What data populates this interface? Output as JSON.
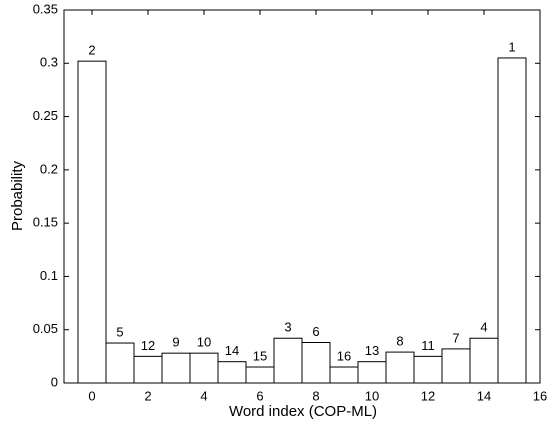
{
  "chart_data": {
    "type": "bar",
    "x_label": "Word index (COP-ML)",
    "y_label": "Probability",
    "x": [
      0,
      1,
      2,
      3,
      4,
      5,
      6,
      7,
      8,
      9,
      10,
      11,
      12,
      13,
      14,
      15
    ],
    "values": [
      0.302,
      0.0375,
      0.025,
      0.028,
      0.028,
      0.02,
      0.015,
      0.042,
      0.038,
      0.015,
      0.02,
      0.029,
      0.025,
      0.032,
      0.042,
      0.305
    ],
    "annotations": [
      "2",
      "5",
      "12",
      "9",
      "10",
      "14",
      "15",
      "3",
      "6",
      "16",
      "13",
      "8",
      "11",
      "7",
      "4",
      "1"
    ],
    "color": "#ffffff",
    "edge_color": "#000000",
    "xlim": [
      -1,
      16
    ],
    "xticks": [
      0,
      2,
      4,
      6,
      8,
      10,
      12,
      14,
      16
    ],
    "ylim": [
      0,
      0.35
    ],
    "yticks": [
      0,
      0.05,
      0.1,
      0.15,
      0.2,
      0.25,
      0.3,
      0.35
    ]
  }
}
